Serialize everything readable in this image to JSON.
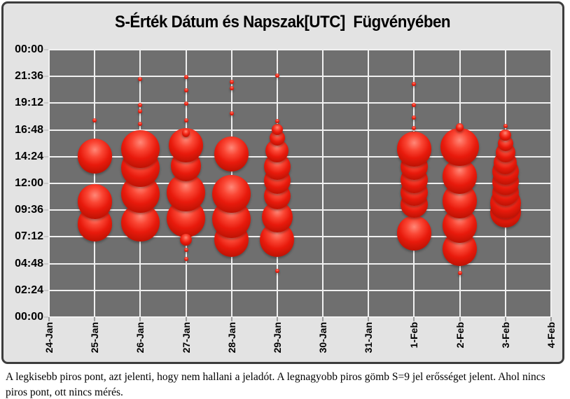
{
  "title": "S-Érték Dátum és Napszak[UTC]  Fügvényében",
  "caption": "A legkisebb piros pont, azt jelenti, hogy nem hallani a jeladót. A legnagyobb piros gömb S=9 jel erősséget jelent. Ahol nincs piros pont, ott nincs mérés.",
  "colors": {
    "figure_background": "#e3e3e3",
    "figure_border": "#3d3d3d",
    "plot_background": "#6f6f6f",
    "gridline": "#f0f0f0",
    "bubble_red": "#e81a0c",
    "bubble_highlight": "#ff8878",
    "bubble_dark_edge": "#8f0c02",
    "text": "#000000"
  },
  "chart_data": {
    "type": "scatter",
    "subtype": "bubble",
    "title": "S-Érték Dátum és Napszak[UTC]  Fügvényében",
    "xlabel": "",
    "ylabel": "",
    "grid": true,
    "legend": false,
    "x_ticks": [
      "24-Jan",
      "25-Jan",
      "26-Jan",
      "27-Jan",
      "28-Jan",
      "29-Jan",
      "30-Jan",
      "31-Jan",
      "1-Feb",
      "2-Feb",
      "3-Feb",
      "4-Feb"
    ],
    "y_ticks": [
      "00:00",
      "21:36",
      "19:12",
      "16:48",
      "14:24",
      "12:00",
      "09:36",
      "07:12",
      "04:48",
      "02:24",
      "00:00"
    ],
    "y_axis_note": "time of day UTC; 00:00(=24:00) at top, 00:00 at bottom, gridlines every 2:24",
    "bubble_scale_note": "S=0 smallest dot (beacon not heard), S=9 largest sphere; radius_px = 3 + 2.7*S",
    "points": [
      {
        "date": "25-Jan",
        "time": "17:40",
        "s": 0
      },
      {
        "date": "25-Jan",
        "time": "14:27",
        "s": 8
      },
      {
        "date": "25-Jan",
        "time": "10:22",
        "s": 8
      },
      {
        "date": "25-Jan",
        "time": "08:21",
        "s": 8
      },
      {
        "date": "26-Jan",
        "time": "21:21",
        "s": 0
      },
      {
        "date": "26-Jan",
        "time": "19:02",
        "s": 0
      },
      {
        "date": "26-Jan",
        "time": "18:28",
        "s": 0
      },
      {
        "date": "26-Jan",
        "time": "17:20",
        "s": 0
      },
      {
        "date": "26-Jan",
        "time": "15:05",
        "s": 9
      },
      {
        "date": "26-Jan",
        "time": "13:23",
        "s": 9
      },
      {
        "date": "26-Jan",
        "time": "11:04",
        "s": 9
      },
      {
        "date": "26-Jan",
        "time": "08:29",
        "s": 9
      },
      {
        "date": "27-Jan",
        "time": "21:33",
        "s": 0
      },
      {
        "date": "27-Jan",
        "time": "20:21",
        "s": 0
      },
      {
        "date": "27-Jan",
        "time": "19:10",
        "s": 0
      },
      {
        "date": "27-Jan",
        "time": "17:39",
        "s": 0
      },
      {
        "date": "27-Jan",
        "time": "16:31",
        "s": 1
      },
      {
        "date": "27-Jan",
        "time": "15:24",
        "s": 8
      },
      {
        "date": "27-Jan",
        "time": "13:34",
        "s": 7
      },
      {
        "date": "27-Jan",
        "time": "11:11",
        "s": 9
      },
      {
        "date": "27-Jan",
        "time": "08:51",
        "s": 9
      },
      {
        "date": "27-Jan",
        "time": "06:58",
        "s": 2
      },
      {
        "date": "27-Jan",
        "time": "06:02",
        "s": 0
      },
      {
        "date": "27-Jan",
        "time": "05:13",
        "s": 0
      },
      {
        "date": "28-Jan",
        "time": "21:07",
        "s": 0
      },
      {
        "date": "28-Jan",
        "time": "20:33",
        "s": 0
      },
      {
        "date": "28-Jan",
        "time": "18:17",
        "s": 0
      },
      {
        "date": "28-Jan",
        "time": "14:38",
        "s": 8
      },
      {
        "date": "28-Jan",
        "time": "11:04",
        "s": 9
      },
      {
        "date": "28-Jan",
        "time": "08:48",
        "s": 9
      },
      {
        "date": "28-Jan",
        "time": "06:55",
        "s": 8
      },
      {
        "date": "29-Jan",
        "time": "21:40",
        "s": 0
      },
      {
        "date": "29-Jan",
        "time": "17:35",
        "s": 0
      },
      {
        "date": "29-Jan",
        "time": "16:50",
        "s": 2
      },
      {
        "date": "29-Jan",
        "time": "16:05",
        "s": 3
      },
      {
        "date": "29-Jan",
        "time": "14:57",
        "s": 5
      },
      {
        "date": "29-Jan",
        "time": "13:30",
        "s": 6
      },
      {
        "date": "29-Jan",
        "time": "12:15",
        "s": 6
      },
      {
        "date": "29-Jan",
        "time": "10:52",
        "s": 6
      },
      {
        "date": "29-Jan",
        "time": "09:00",
        "s": 7
      },
      {
        "date": "29-Jan",
        "time": "06:55",
        "s": 8
      },
      {
        "date": "29-Jan",
        "time": "04:09",
        "s": 0
      },
      {
        "date": "1-Feb",
        "time": "20:55",
        "s": 0
      },
      {
        "date": "1-Feb",
        "time": "19:02",
        "s": 0
      },
      {
        "date": "1-Feb",
        "time": "17:54",
        "s": 0
      },
      {
        "date": "1-Feb",
        "time": "16:58",
        "s": 0
      },
      {
        "date": "1-Feb",
        "time": "15:05",
        "s": 8
      },
      {
        "date": "1-Feb",
        "time": "13:31",
        "s": 6
      },
      {
        "date": "1-Feb",
        "time": "12:19",
        "s": 6
      },
      {
        "date": "1-Feb",
        "time": "11:11",
        "s": 6
      },
      {
        "date": "1-Feb",
        "time": "10:07",
        "s": 6
      },
      {
        "date": "1-Feb",
        "time": "07:32",
        "s": 8
      },
      {
        "date": "2-Feb",
        "time": "17:01",
        "s": 1
      },
      {
        "date": "2-Feb",
        "time": "15:16",
        "s": 9
      },
      {
        "date": "2-Feb",
        "time": "12:38",
        "s": 8
      },
      {
        "date": "2-Feb",
        "time": "10:26",
        "s": 8
      },
      {
        "date": "2-Feb",
        "time": "08:14",
        "s": 8
      },
      {
        "date": "2-Feb",
        "time": "06:09",
        "s": 8
      },
      {
        "date": "2-Feb",
        "time": "03:58",
        "s": 0
      },
      {
        "date": "3-Feb",
        "time": "17:09",
        "s": 0
      },
      {
        "date": "3-Feb",
        "time": "16:20",
        "s": 2
      },
      {
        "date": "3-Feb",
        "time": "15:35",
        "s": 3
      },
      {
        "date": "3-Feb",
        "time": "14:46",
        "s": 4
      },
      {
        "date": "3-Feb",
        "time": "13:53",
        "s": 5
      },
      {
        "date": "3-Feb",
        "time": "13:04",
        "s": 6
      },
      {
        "date": "3-Feb",
        "time": "12:08",
        "s": 6
      },
      {
        "date": "3-Feb",
        "time": "11:11",
        "s": 6
      },
      {
        "date": "3-Feb",
        "time": "10:14",
        "s": 7
      },
      {
        "date": "3-Feb",
        "time": "09:25",
        "s": 7
      }
    ]
  }
}
